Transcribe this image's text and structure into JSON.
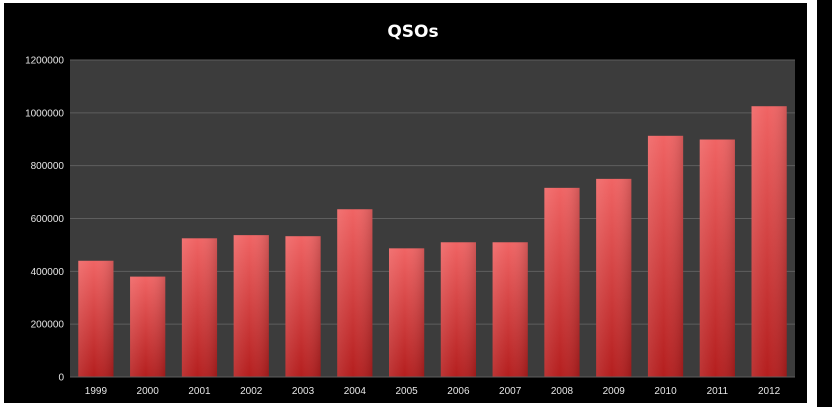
{
  "chart_data": {
    "type": "bar",
    "title": "QSOs",
    "categories": [
      "1999",
      "2000",
      "2001",
      "2002",
      "2003",
      "2004",
      "2005",
      "2006",
      "2007",
      "2008",
      "2009",
      "2010",
      "2011",
      "2012"
    ],
    "values": [
      440000,
      380000,
      525000,
      537000,
      533000,
      635000,
      487000,
      510000,
      510000,
      716000,
      750000,
      913000,
      899000,
      1025000
    ],
    "yticks": [
      "0",
      "200000",
      "400000",
      "600000",
      "800000",
      "1000000",
      "1200000"
    ],
    "ylim": [
      0,
      1200000
    ],
    "grid": true,
    "legend": "none",
    "colors": {
      "background": "#000000",
      "plot_area": "#3c3c3c",
      "bar_top": "#f06464",
      "bar_bottom": "#b41e1e",
      "gridline": "#5e5e5e",
      "text": "#e6e6e6"
    }
  }
}
